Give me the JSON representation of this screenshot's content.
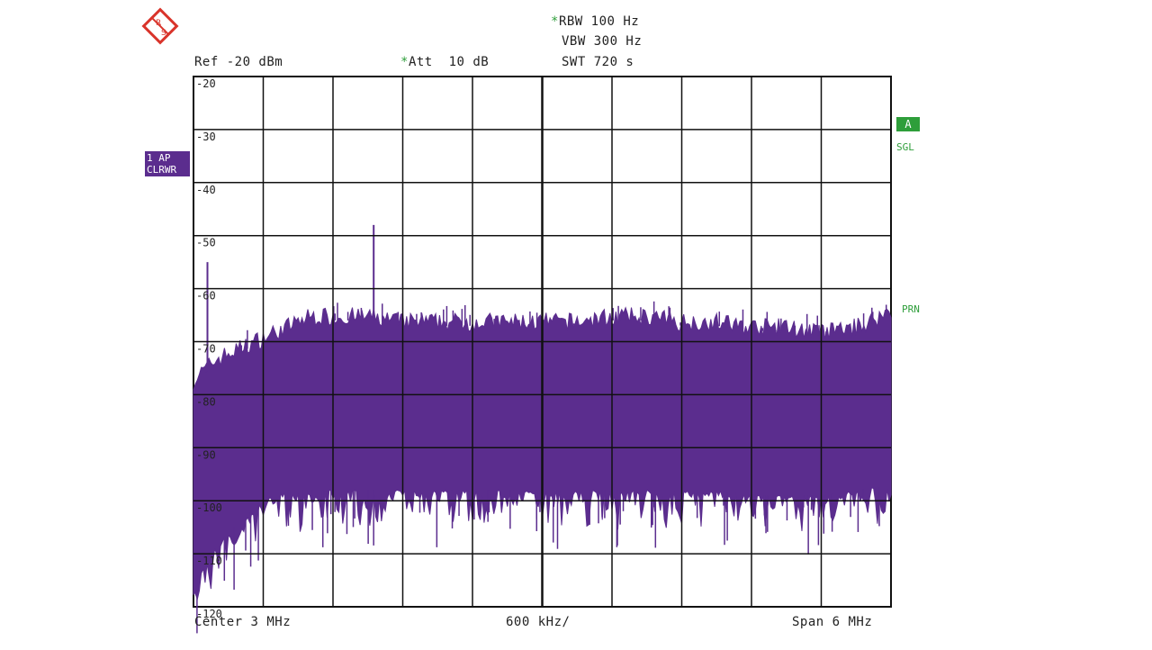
{
  "header": {
    "rbw": "RBW 100 Hz",
    "vbw": "VBW 300 Hz",
    "ref": "Ref -20 dBm",
    "att": "Att  10 dB",
    "swt": "SWT 720 s",
    "rbw_star": "*",
    "att_star": "*"
  },
  "trace_badge": {
    "line1": "1 AP",
    "line2": "CLRWR"
  },
  "side": {
    "a_badge": "A",
    "sgl": "SGL",
    "pre": "PRN"
  },
  "footer": {
    "center": "Center 3 MHz",
    "div": "600 kHz/",
    "span": "Span 6 MHz"
  },
  "colors": {
    "trace": "#5b2d8e",
    "grid": "#111111",
    "accent": "#2e9e3a",
    "logo": "#d9342b"
  },
  "chart_data": {
    "type": "line",
    "title": "",
    "xlabel": "",
    "ylabel": "",
    "xlim": [
      0,
      6
    ],
    "ylim": [
      -120,
      -20
    ],
    "ytick_labels": [
      "-20",
      "-30",
      "-40",
      "-50",
      "-60",
      "-70",
      "-80",
      "-90",
      "-100",
      "-110",
      "-120"
    ],
    "grid": true,
    "series": [
      {
        "x": [
          0.0,
          0.1,
          0.2,
          0.4,
          0.6,
          0.8,
          1.0,
          1.2,
          1.5,
          1.8,
          2.1,
          2.4,
          2.7,
          3.0,
          3.3,
          3.6,
          3.9,
          4.2,
          4.5,
          4.8,
          5.1,
          5.4,
          5.7,
          6.0
        ],
        "upper": [
          -78,
          -76,
          -74,
          -72,
          -70,
          -68,
          -66,
          -66,
          -66,
          -67,
          -67,
          -67,
          -67,
          -67,
          -67,
          -66,
          -66,
          -67,
          -67,
          -68,
          -68,
          -69,
          -68,
          -65
        ],
        "lower": [
          -115,
          -112,
          -108,
          -104,
          -100,
          -98,
          -98,
          -98,
          -98,
          -98,
          -98,
          -98,
          -98,
          -98,
          -98,
          -98,
          -98,
          -98,
          -98,
          -99,
          -99,
          -99,
          -98,
          -97
        ]
      }
    ],
    "spurs": [
      {
        "x": 0.12,
        "y": -55
      },
      {
        "x": 1.55,
        "y": -48
      }
    ]
  }
}
